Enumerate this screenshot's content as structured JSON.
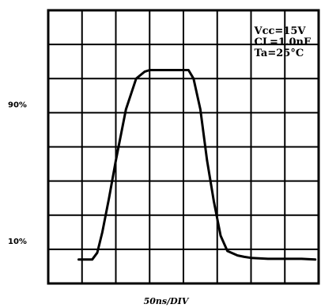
{
  "chart_data": {
    "type": "line",
    "title": "",
    "xlabel": "50ns/DIV",
    "ylabel": "",
    "grid": true,
    "x_divisions": 8,
    "y_divisions": 8,
    "xlim": [
      0,
      8
    ],
    "ylim": [
      0,
      8
    ],
    "level_labels": [
      {
        "text": "90%",
        "y": 5.25
      },
      {
        "text": "10%",
        "y": 1.25
      }
    ],
    "conditions": [
      "Vcc=15V",
      "CL=1.0nF",
      "Ta=25°C"
    ],
    "series": [
      {
        "x": [
          0.9,
          1.3,
          1.45,
          1.6,
          1.8,
          2.0,
          2.3,
          2.6,
          2.85,
          3.0,
          3.2,
          3.5,
          3.8,
          4.15,
          4.3,
          4.5,
          4.7,
          4.9,
          5.1,
          5.3,
          5.6,
          5.8,
          6.0,
          6.5,
          7.0,
          7.5,
          7.9
        ],
        "y": [
          0.7,
          0.7,
          0.9,
          1.5,
          2.5,
          3.6,
          5.1,
          6.0,
          6.2,
          6.25,
          6.25,
          6.25,
          6.25,
          6.25,
          6.0,
          5.1,
          3.6,
          2.4,
          1.4,
          0.95,
          0.82,
          0.78,
          0.75,
          0.72,
          0.72,
          0.72,
          0.7
        ]
      }
    ]
  }
}
